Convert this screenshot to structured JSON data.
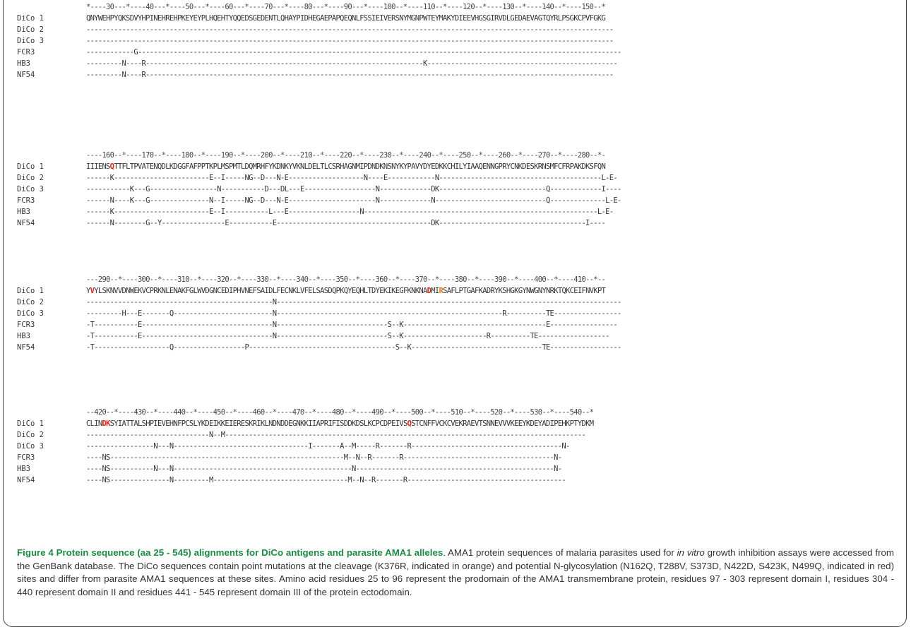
{
  "blocks": [
    {
      "ruler": "*----30---*----40---*----50---*----60---*----70---*----80---*----90---*----100--*----110--*----120--*----130--*----140--*----150--*",
      "rows": [
        {
          "label": "DiCo 1",
          "seq": "QNYWEHPYQKSDVYHPINEHREHPKEYEYPLHQEHTYQQEDSGEDENTLQHAYPIDHEGAEPAPQEQNLFSSIEIVERSNYMGNPWTEYMAKYDIEEVHGSGIRVDLGEDAEVAGTQYRLPSGKCPVFGKG"
        },
        {
          "label": "DiCo 2",
          "seq": "-------------------------------------------------------------------------------------------------------------------------------------"
        },
        {
          "label": "DiCo 3",
          "seq": "-------------------------------------------------------------------------------------------------------------------------------------"
        },
        {
          "label": "FCR3",
          "seq": "------------G--------------------------------------------------------------------------------------------------------------------------"
        },
        {
          "label": "HB3",
          "seq": "---------N----R----------------------------------------------------------------------K------------------------------------------------"
        },
        {
          "label": "NF54",
          "seq": "---------N----R----------------------------------------------------------------------------------------------------------------------"
        }
      ]
    },
    {
      "ruler": "----160--*----170--*----180--*----190--*----200--*----210--*----220--*----230--*----240--*----250--*----260--*----270--*----280--*-",
      "rows": [
        {
          "label": "DiCo 1",
          "seq_a": "IIIENS",
          "mark": "Q",
          "mark_color": "red",
          "seq_b": "TTFLTPVATENQDLKDGGFAFPPTKPLMSPMTLDQMRHFYKDNKYVKNLDELTLCSRHAGNMIPDNDKNSNYKYPAVYDYEDKKCHILYIAAQENNGPRYCNKDESKRNSMFCFRPAKDKSFQN"
        },
        {
          "label": "DiCo 2",
          "seq": "------K------------------------E--I-----NG--D---N-E-------------------N----E------------N-----------------------------------------L-E-"
        },
        {
          "label": "DiCo 3",
          "seq": "-----------K---G-----------------N-----------D---DL---E------------------N-------------DK---------------------------Q-------------I----"
        },
        {
          "label": "FCR3",
          "seq": "------N----K---G---------------N--I-----NG--D---N-E----------------------N-------------N----------------------------Q--------------L-E-"
        },
        {
          "label": "HB3",
          "seq": "------K------------------------E--I-----------L---E------------------N-----------------------------------------------------------L-E-"
        },
        {
          "label": "NF54",
          "seq": "------N--------G--Y----------------E-----------E---------------------------------------DK-------------------------------------I----"
        }
      ]
    },
    {
      "ruler": "---290--*----300--*----310--*----320--*----330--*----340--*----350--*----360--*----370--*----380--*----390--*----400--*----410--*--",
      "rows": [
        {
          "label": "DiCo 1",
          "seq_a": "Y",
          "mark": "V",
          "mark_color": "red",
          "seq_b": "YLSKNVVDNWEKVCPRKNLENAKFGLWVDGNCEDIPHVNEFSAIDLFECNKLVFELSASDQPKQYEQHLTDYEKIKEGFKNKNA",
          "mark2": "D",
          "mark2_color": "red",
          "seq_c": "MI",
          "mark3": "R",
          "mark3_color": "orange",
          "seq_d": "SAFLPTGAFKADRYKSHGKGYNWGNYNRKTQKCEIFNVKPT"
        },
        {
          "label": "DiCo 2",
          "seq": "-----------------------------------------------N---------------------------------------------------------------------------------------"
        },
        {
          "label": "DiCo 3",
          "seq": "---------H---E-------Q-------------------------N---------------------------------------------------------R----------TE-----------------"
        },
        {
          "label": "FCR3",
          "seq": "-T-----------E---------------------------------N----------------------------S--K------------------------------------E-----------------"
        },
        {
          "label": "HB3",
          "seq": "-T-----------E---------------------------------N----------------------------S--K---------------------R----------TE------------------"
        },
        {
          "label": "NF54",
          "seq": "-T-------------------Q------------------P-------------------------------------S--K---------------------------------TE------------------"
        }
      ]
    },
    {
      "ruler": "--420--*----430--*----440--*----450--*----460--*----470--*----480--*----490--*----500--*----510--*----520--*----530--*----540--*",
      "rows": [
        {
          "label": "DiCo 1",
          "seq_a": "CLIN",
          "mark": "DK",
          "mark_color": "red",
          "seq_b": "SYIATTALSHPIEVEHNFPCSLYKDEIKKEIERESKRIKLNDNDDEGNKKIIAPRIFISDDKDSLKCPCDPEIVS",
          "mark2": "Q",
          "mark2_color": "red",
          "seq_c": "STCNFFVCKCVEKRAEVTSNNEVVVKEEYKDEYADIPEHKPTYDKM"
        },
        {
          "label": "DiCo 2",
          "seq": "-------------------------------N--M-------------------------------------------------------------------------------------------"
        },
        {
          "label": "DiCo 3",
          "seq": "-----------------N---N----------------------------------I-------A--M-----R-------R--------------------------------------N-"
        },
        {
          "label": "FCR3",
          "seq": "----NS-----------------------------------------------------------M--N--R-------R--------------------------------------N-"
        },
        {
          "label": "HB3",
          "seq": "----NS-----------N---N---------------------------------------------N--------------------------------------------------N-"
        },
        {
          "label": "NF54",
          "seq": "----NS---------------N---------M----------------------------------M--N--R-------R----------------------------------------"
        }
      ]
    }
  ],
  "caption": {
    "title": "Figure 4 Protein sequence (aa 25 - 545) alignments for DiCo antigens and parasite AMA1 alleles",
    "text_1": ". AMA1 protein sequences of malaria parasites used for ",
    "italic": "in vitro",
    "text_2": " growth inhibition assays were accessed from the GenBank database. The DiCo sequences contain point mutations at the cleavage (K376R, indicated in orange) and potential N-glycosylation (N162Q, T288V, S373D, N422D, S423K, N499Q, indicated in red) sites and differ from parasite AMA1 sequences at these sites. Amino acid residues 25 to 96 represent the prodomain of the AMA1 transmembrane protein, residues 97 - 303 represent domain I, residues 304 - 440 represent domain II and residues 441 - 545 represent domain III of the protein ectodomain."
  },
  "colors": {
    "red": "#d9261c",
    "orange": "#e87a10",
    "title_green": "#1d8a45"
  }
}
